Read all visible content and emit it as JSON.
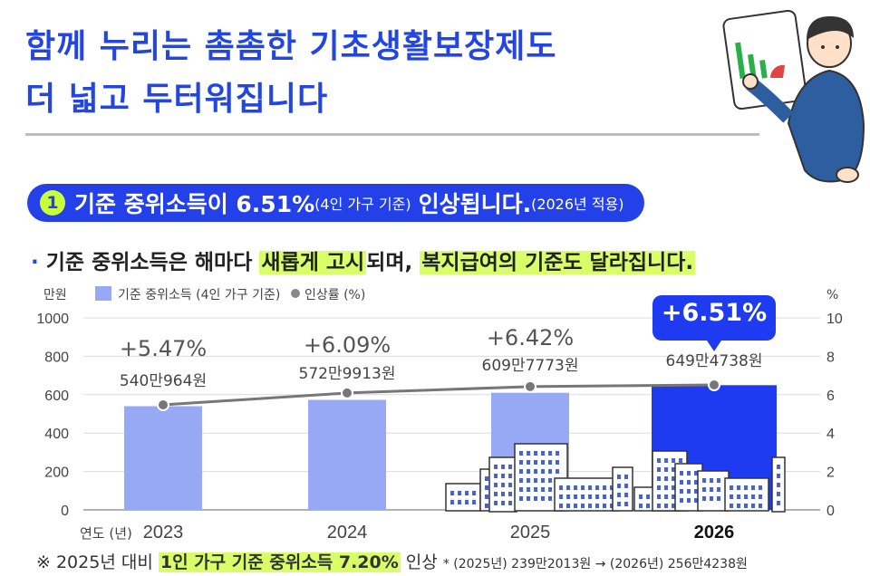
{
  "title": {
    "line1": "함께 누리는 촘촘한 기초생활보장제도",
    "line2": "더 넓고 두터워집니다"
  },
  "badge": {
    "number": "1",
    "main": "기준 중위소득이 6.51%",
    "note1": "(4인 가구 기준)",
    "main2": "인상됩니다.",
    "note2": "(2026년 적용)"
  },
  "subline": {
    "part1": "기준 중위소득은 해마다 ",
    "hl1": "새롭게 고시",
    "part2": "되며, ",
    "hl2": "복지급여의 기준도 달라집니다."
  },
  "footnote": {
    "prefix": "※ 2025년 대비 ",
    "hl": "1인 가구 기준 중위소득 7.20%",
    "suffix": " 인상",
    "small": "* (2025년) 239만2013원 → (2026년) 256만4238원"
  },
  "chart_data": {
    "type": "bar",
    "categories": [
      "2023",
      "2024",
      "2025",
      "2026"
    ],
    "xlabel": "연도 (년)",
    "ylabel_left": "만원",
    "ylabel_right": "%",
    "ylim_left": [
      0,
      1000
    ],
    "yticks_left": [
      0,
      200,
      400,
      600,
      800,
      1000
    ],
    "ylim_right": [
      0,
      10
    ],
    "yticks_right": [
      0,
      2,
      4,
      6,
      8,
      10
    ],
    "legend": [
      "기준 중위소득 (4인 가구 기준)",
      "인상률 (%)"
    ],
    "series": [
      {
        "name": "기준 중위소득 (4인 가구 기준)",
        "axis": "left",
        "values": [
          540.0964,
          572.9913,
          609.7773,
          649.4738
        ],
        "labels": [
          "540만964원",
          "572만9913원",
          "609만7773원",
          "649만4738원"
        ]
      },
      {
        "name": "인상률 (%)",
        "axis": "right",
        "values": [
          5.47,
          6.09,
          6.42,
          6.51
        ],
        "labels": [
          "+5.47%",
          "+6.09%",
          "+6.42%",
          "+6.51%"
        ]
      }
    ],
    "colors": {
      "bar": "#97a9f4",
      "bar_highlight": "#1f3bf2",
      "line": "#777777",
      "callout": "#1f3bf2"
    }
  }
}
